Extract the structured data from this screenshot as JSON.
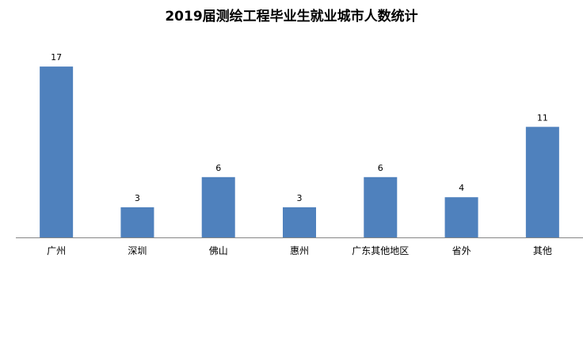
{
  "chart_data": {
    "type": "bar",
    "title": "2019届测绘工程毕业生就业城市人数统计",
    "xlabel": "",
    "ylabel": "",
    "categories": [
      "广州",
      "深圳",
      "佛山",
      "惠州",
      "广东其他地区",
      "省外",
      "其他"
    ],
    "values": [
      17,
      3,
      6,
      3,
      6,
      4,
      11
    ],
    "ylim": [
      0,
      18
    ],
    "grid": false,
    "legend": "none",
    "bar_color": "#4f81bd"
  }
}
